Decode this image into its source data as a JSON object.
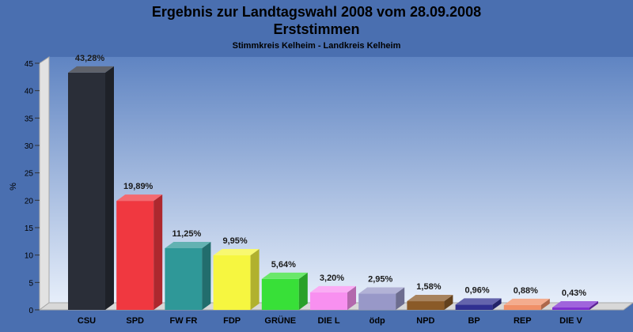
{
  "title_line1": "Ergebnis zur Landtagswahl 2008 vom 28.09.2008",
  "title_line2": "Erststimmen",
  "subtitle": "Stimmkreis Kelheim - Landkreis Kelheim",
  "chart_data": {
    "type": "bar",
    "title": "Ergebnis zur Landtagswahl 2008 vom 28.09.2008 Erststimmen",
    "subtitle": "Stimmkreis Kelheim - Landkreis Kelheim",
    "xlabel": "",
    "ylabel": "%",
    "ylim": [
      0,
      45
    ],
    "yticks": [
      0,
      5,
      10,
      15,
      20,
      25,
      30,
      35,
      40,
      45
    ],
    "grid": false,
    "categories": [
      "CSU",
      "SPD",
      "FW FR",
      "FDP",
      "GRÜNE",
      "DIE L",
      "ödp",
      "NPD",
      "BP",
      "REP",
      "DIE V"
    ],
    "values": [
      43.28,
      19.89,
      11.25,
      9.95,
      5.64,
      3.2,
      2.95,
      1.58,
      0.96,
      0.88,
      0.43
    ],
    "data_labels": [
      "43,28%",
      "19,89%",
      "11,25%",
      "9,95%",
      "5,64%",
      "3,20%",
      "2,95%",
      "1,58%",
      "0,96%",
      "0,88%",
      "0,43%"
    ],
    "colors": [
      "#2a2e38",
      "#f03840",
      "#2f9898",
      "#f6f640",
      "#38e038",
      "#f890f0",
      "#9898c8",
      "#8a5a28",
      "#303090",
      "#f09068",
      "#8030d0"
    ]
  }
}
